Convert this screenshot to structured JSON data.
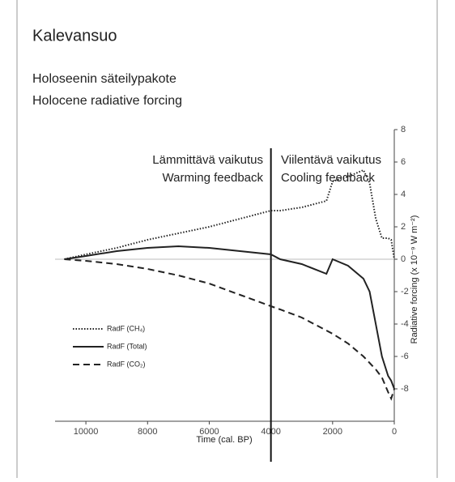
{
  "header": {
    "title": "Kalevansuo",
    "subtitle_fi": "Holoseenin säteilypakote",
    "subtitle_en": "Holocene radiative forcing"
  },
  "chart_data": {
    "type": "line",
    "xlabel": "Time (cal. BP)",
    "ylabel": "Radiative forcing (x 10⁻⁹ W m⁻²)",
    "annotations": {
      "left": [
        "Lämmittävä vaikutus",
        "Warming feedback"
      ],
      "right": [
        "Viilentävä vaikutus",
        "Cooling feedback"
      ],
      "divider_x": 4000
    },
    "x": [
      10700,
      10000,
      9000,
      8000,
      7000,
      6000,
      5000,
      4000,
      3700,
      3000,
      2200,
      2000,
      1500,
      1000,
      800,
      600,
      400,
      200,
      100,
      0
    ],
    "series": [
      {
        "name": "RadF (CH₄)",
        "color": "#222222",
        "dash": "dotted",
        "values": [
          0,
          0.3,
          0.7,
          1.2,
          1.6,
          2.0,
          2.5,
          3.0,
          3.0,
          3.2,
          3.6,
          4.8,
          5.1,
          5.5,
          4.7,
          2.5,
          1.3,
          1.3,
          1.2,
          0
        ]
      },
      {
        "name": "RadF (Total)",
        "color": "#222222",
        "dash": "solid",
        "values": [
          0,
          0.2,
          0.5,
          0.7,
          0.8,
          0.7,
          0.5,
          0.3,
          0,
          -0.3,
          -0.9,
          0,
          -0.4,
          -1.2,
          -2,
          -4,
          -6,
          -7.2,
          -7.5,
          -8
        ]
      },
      {
        "name": "RadF (CO₂)",
        "color": "#222222",
        "dash": "dashed",
        "values": [
          0,
          -0.1,
          -0.3,
          -0.6,
          -1.0,
          -1.5,
          -2.2,
          -2.9,
          -3.1,
          -3.6,
          -4.4,
          -4.6,
          -5.2,
          -6.0,
          -6.4,
          -6.8,
          -7.3,
          -8.2,
          -8.6,
          -8
        ]
      }
    ],
    "xlim": [
      11000,
      0
    ],
    "xticks": [
      10000,
      8000,
      6000,
      4000,
      2000,
      0
    ],
    "ylim": [
      -10,
      8
    ],
    "yticks": [
      8,
      6,
      4,
      2,
      0,
      -2,
      -4,
      -6,
      -8
    ],
    "yaxis_side": "right",
    "legend": "lower left"
  }
}
